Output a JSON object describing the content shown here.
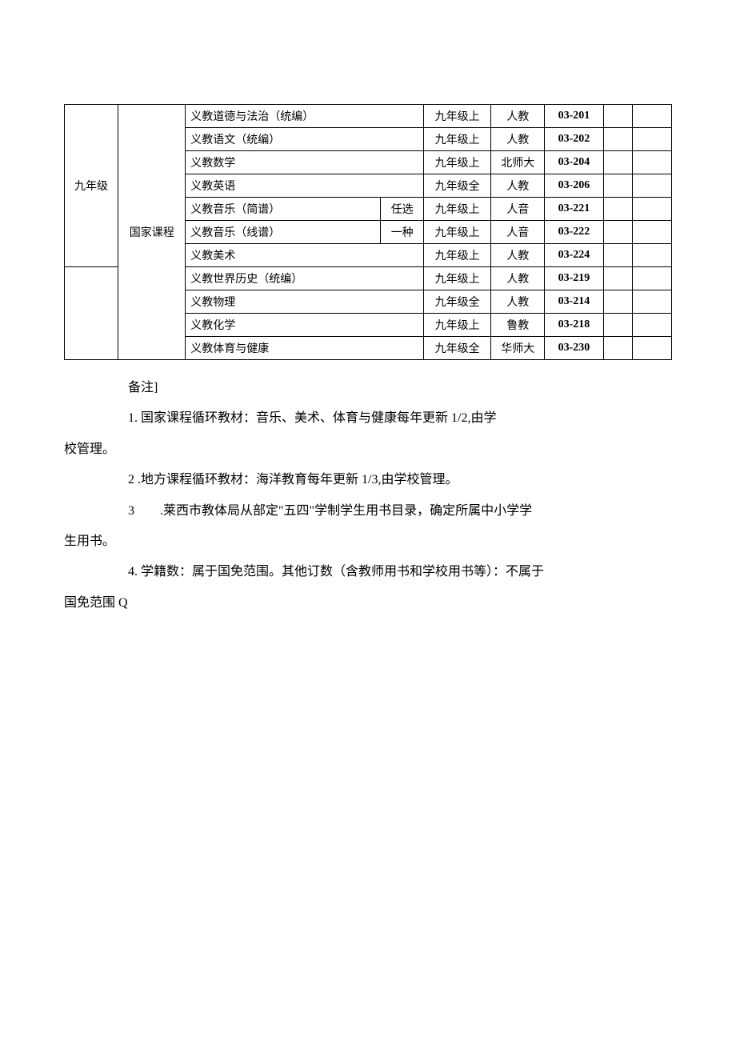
{
  "table": {
    "grade": "九年级",
    "category": "国家课程",
    "rows": [
      {
        "subject": "义教道德与法治（统编）",
        "note": "",
        "subject_colspan": 2,
        "volume": "九年级上",
        "publisher": "人教",
        "code": "03-201"
      },
      {
        "subject": "义教语文（统编）",
        "note": "",
        "subject_colspan": 2,
        "volume": "九年级上",
        "publisher": "人教",
        "code": "03-202"
      },
      {
        "subject": "义教数学",
        "note": "",
        "subject_colspan": 2,
        "volume": "九年级上",
        "publisher": "北师大",
        "code": "03-204"
      },
      {
        "subject": "义教英语",
        "note": "",
        "subject_colspan": 2,
        "volume": "九年级全",
        "publisher": "人教",
        "code": "03-206"
      },
      {
        "subject": " 义教音乐（简谱）",
        "note": "任选",
        "subject_colspan": 1,
        "volume": "九年级上",
        "publisher": "人音",
        "code": "03-221"
      },
      {
        "subject": " 义教音乐（线谱）",
        "note": "一种",
        "subject_colspan": 1,
        "volume": "九年级上",
        "publisher": "人音",
        "code": "03-222"
      },
      {
        "subject": "义教美术",
        "note": "",
        "subject_colspan": 2,
        "volume": "九年级上",
        "publisher": "人教",
        "code": "03-224"
      },
      {
        "subject": "义教世界历史（统编）",
        "note": "",
        "subject_colspan": 2,
        "volume": "九年级上",
        "publisher": "人教",
        "code": "03-219"
      },
      {
        "subject": "义教物理",
        "note": "",
        "subject_colspan": 2,
        "volume": "九年级全",
        "publisher": "人教",
        "code": "03-214"
      },
      {
        "subject": "义教化学",
        "note": "",
        "subject_colspan": 2,
        "volume": "九年级上",
        "publisher": "鲁教",
        "code": "03-218"
      },
      {
        "subject": "义教体育与健康",
        "note": "",
        "subject_colspan": 2,
        "volume": "九年级全",
        "publisher": "华师大",
        "code": "03-230"
      }
    ]
  },
  "notes": {
    "header": "备注]",
    "n1a": "1. 国家课程循环教材：音乐、美术、体育与健康每年更新 1/2,由学",
    "n1b": "校管理。",
    "n2": "2 .地方课程循环教材：海洋教育每年更新 1/3,由学校管理。",
    "n3a": "3  .莱西市教体局从部定\"五四\"学制学生用书目录，确定所属中小学学",
    "n3b": "生用书。",
    "n4a": "4. 学籍数：属于国免范围。其他订数（含教师用书和学校用书等）：不属于",
    "n4b": "国免范围 Q"
  }
}
